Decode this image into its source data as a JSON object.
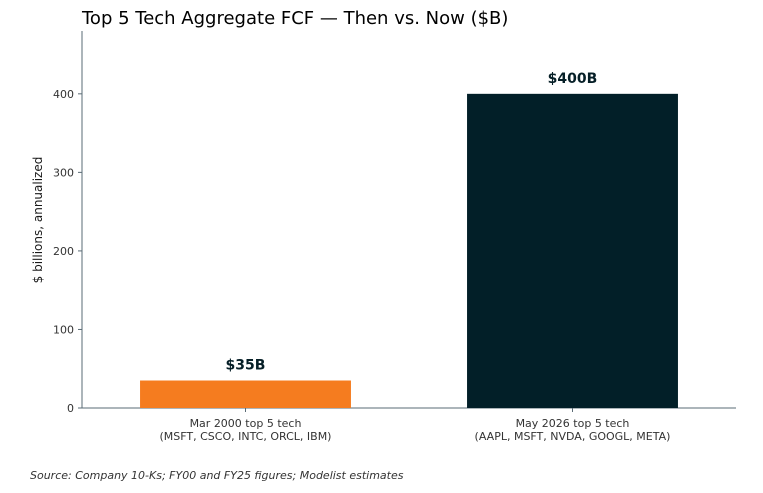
{
  "chart_data": {
    "type": "bar",
    "title": "Top 5 Tech Aggregate FCF — Then vs. Now ($B)",
    "ylabel": "$ billions, annualized",
    "xlabel": "",
    "ylim": [
      0,
      480
    ],
    "yticks": [
      0,
      100,
      200,
      300,
      400
    ],
    "categories": [
      [
        "Mar 2000 top 5 tech",
        "(MSFT, CSCO, INTC, ORCL, IBM)"
      ],
      [
        "May 2026 top 5 tech",
        "(AAPL, MSFT, NVDA, GOOGL, META)"
      ]
    ],
    "values": [
      35,
      400
    ],
    "value_labels": [
      "$35B",
      "$400B"
    ],
    "colors": [
      "#f57c1f",
      "#021f28"
    ],
    "grid": false,
    "legend": "none"
  },
  "footer": {
    "source": "Source: Company 10-Ks; FY00 and FY25 figures; Modelist estimates"
  }
}
